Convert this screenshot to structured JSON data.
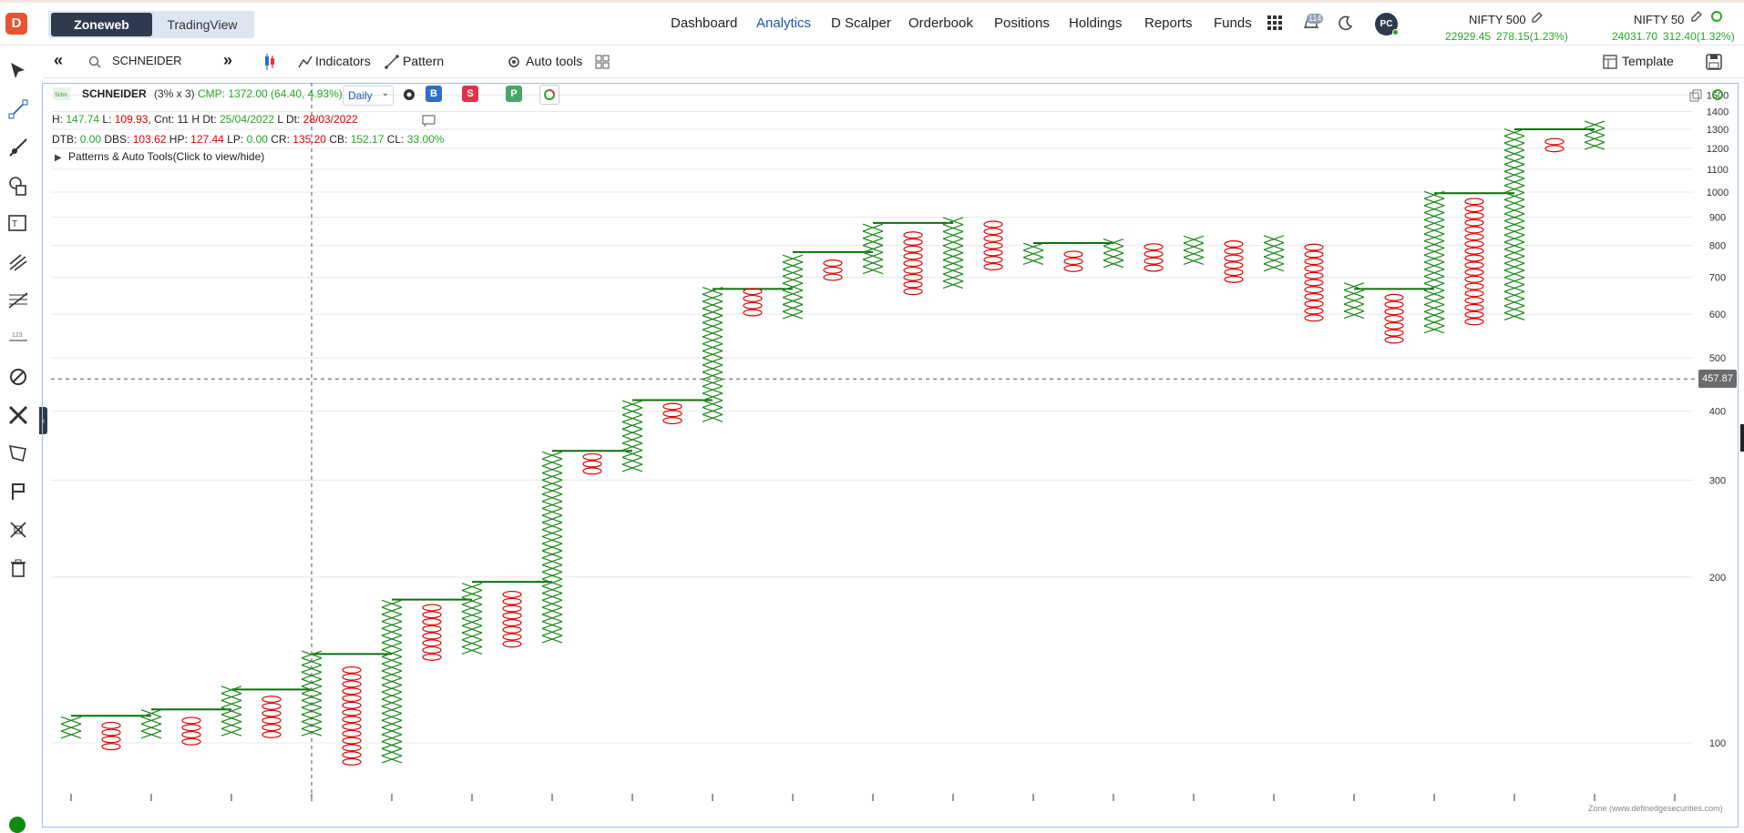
{
  "app": {
    "logo_text": "D",
    "logo_color": "#e8542f"
  },
  "mode_switch": {
    "options": [
      "Zoneweb",
      "TradingView"
    ],
    "selected": "Zoneweb"
  },
  "nav": {
    "items": [
      "Dashboard",
      "Analytics",
      "D Scalper",
      "Orderbook",
      "Positions",
      "Holdings",
      "Reports",
      "Funds"
    ],
    "active": "Analytics"
  },
  "header": {
    "notification_count": "114",
    "avatar_initials": "PC"
  },
  "tickers": [
    {
      "name": "NIFTY 500",
      "price": "22929.45",
      "change": "278.15(1.23%)"
    },
    {
      "name": "NIFTY 50",
      "price": "24031.70",
      "change": "312.40(1.32%)"
    }
  ],
  "toolbar": {
    "symbol": "SCHNEIDER",
    "indicators_label": "Indicators",
    "pattern_label": "Pattern",
    "auto_tools_label": "Auto tools",
    "template_label": "Template"
  },
  "legend": {
    "symbol": "SCHNEIDER",
    "box": "(3% x 3)",
    "cmp": "CMP: 1372.00 (64.40, 4.93%)",
    "timeframe": "Daily",
    "buy_label": "B",
    "sell_label": "S",
    "p_label": "P",
    "line1": {
      "h_label": "H:",
      "h": "147.74",
      "l_label": "L:",
      "l": "109.93",
      "cnt_label": "Cnt:",
      "cnt": "11",
      "hdt_label": "H Dt:",
      "hdt": "25/04/2022",
      "ldt_label": "L Dt:",
      "ldt": "28/03/2022"
    },
    "line2": {
      "dtb_label": "DTB:",
      "dtb": "0.00",
      "dbs_label": "DBS:",
      "dbs": "103.62",
      "hp_label": "HP:",
      "hp": "127.44",
      "lp_label": "LP:",
      "lp": "0.00",
      "cr_label": "CR:",
      "cr": "135.20",
      "cb_label": "CB:",
      "cb": "152.17",
      "cl_label": "CL:",
      "cl": "33.00%"
    },
    "patterns_toggle": "Patterns & Auto Tools(Click to view/hide)"
  },
  "chart_data": {
    "type": "point-and-figure",
    "box": "3% x 3",
    "y_scale": "log",
    "y_ticks": [
      100,
      200,
      300,
      400,
      500,
      600,
      700,
      800,
      900,
      1000,
      1100,
      1200,
      1300,
      1400,
      1500
    ],
    "crosshair_price": "457.87",
    "columns": [
      {
        "kind": "X",
        "low": 102,
        "high": 112
      },
      {
        "kind": "O",
        "low": 97,
        "high": 109
      },
      {
        "kind": "X",
        "low": 102,
        "high": 115
      },
      {
        "kind": "O",
        "low": 99,
        "high": 111
      },
      {
        "kind": "X",
        "low": 103,
        "high": 126
      },
      {
        "kind": "O",
        "low": 102,
        "high": 122
      },
      {
        "kind": "X",
        "low": 103,
        "high": 145
      },
      {
        "kind": "O",
        "low": 91,
        "high": 138
      },
      {
        "kind": "X",
        "low": 92,
        "high": 182
      },
      {
        "kind": "O",
        "low": 141,
        "high": 177
      },
      {
        "kind": "X",
        "low": 145,
        "high": 196
      },
      {
        "kind": "O",
        "low": 149,
        "high": 190
      },
      {
        "kind": "X",
        "low": 152,
        "high": 339
      },
      {
        "kind": "O",
        "low": 307,
        "high": 331
      },
      {
        "kind": "X",
        "low": 311,
        "high": 419
      },
      {
        "kind": "O",
        "low": 379,
        "high": 409
      },
      {
        "kind": "X",
        "low": 383,
        "high": 667
      },
      {
        "kind": "O",
        "low": 595,
        "high": 660
      },
      {
        "kind": "X",
        "low": 589,
        "high": 778
      },
      {
        "kind": "O",
        "low": 690,
        "high": 759
      },
      {
        "kind": "X",
        "low": 711,
        "high": 879
      },
      {
        "kind": "O",
        "low": 650,
        "high": 857
      },
      {
        "kind": "X",
        "low": 669,
        "high": 897
      },
      {
        "kind": "O",
        "low": 721,
        "high": 881
      },
      {
        "kind": "X",
        "low": 739,
        "high": 808
      },
      {
        "kind": "O",
        "low": 716,
        "high": 789
      },
      {
        "kind": "X",
        "low": 730,
        "high": 818
      },
      {
        "kind": "O",
        "low": 717,
        "high": 804
      },
      {
        "kind": "X",
        "low": 739,
        "high": 822
      },
      {
        "kind": "O",
        "low": 684,
        "high": 807
      },
      {
        "kind": "X",
        "low": 719,
        "high": 824
      },
      {
        "kind": "O",
        "low": 582,
        "high": 807
      },
      {
        "kind": "X",
        "low": 590,
        "high": 680
      },
      {
        "kind": "O",
        "low": 531,
        "high": 651
      },
      {
        "kind": "X",
        "low": 555,
        "high": 995
      },
      {
        "kind": "O",
        "low": 573,
        "high": 977
      },
      {
        "kind": "X",
        "low": 586,
        "high": 1300
      },
      {
        "kind": "O",
        "low": 1181,
        "high": 1258
      },
      {
        "kind": "X",
        "low": 1195,
        "high": 1329
      }
    ],
    "resistance_levels": [
      {
        "from_col": 0,
        "to_col": 2,
        "price": 112
      },
      {
        "from_col": 2,
        "to_col": 4,
        "price": 115
      },
      {
        "from_col": 4,
        "to_col": 6,
        "price": 125
      },
      {
        "from_col": 6,
        "to_col": 8,
        "price": 145
      },
      {
        "from_col": 8,
        "to_col": 10,
        "price": 182
      },
      {
        "from_col": 10,
        "to_col": 12,
        "price": 196
      },
      {
        "from_col": 12,
        "to_col": 14,
        "price": 339
      },
      {
        "from_col": 14,
        "to_col": 16,
        "price": 419
      },
      {
        "from_col": 16,
        "to_col": 18,
        "price": 667
      },
      {
        "from_col": 18,
        "to_col": 20,
        "price": 778
      },
      {
        "from_col": 20,
        "to_col": 22,
        "price": 879
      },
      {
        "from_col": 24,
        "to_col": 26,
        "price": 808
      },
      {
        "from_col": 32,
        "to_col": 34,
        "price": 667
      },
      {
        "from_col": 34,
        "to_col": 36,
        "price": 995
      },
      {
        "from_col": 36,
        "to_col": 38,
        "price": 1300
      }
    ],
    "colors": {
      "x": "#1a8a1a",
      "o": "#e00000",
      "resistance": "#0e6e0e",
      "grid": "#e8e8e8"
    }
  },
  "footer": {
    "credit": "Zone (www.definedgesecurities.com)"
  },
  "colors": {
    "accent": "#1f5aa6",
    "positive": "#2aa52a",
    "negative": "#e00000",
    "buy": "#2e6fc7",
    "sell": "#e2334a",
    "pattern": "#47a86a"
  }
}
